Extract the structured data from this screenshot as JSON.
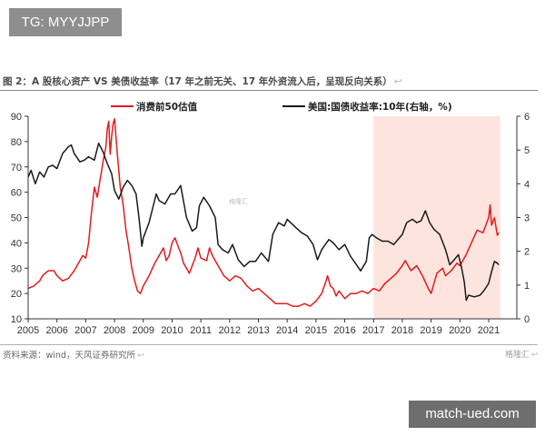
{
  "header": {
    "tag": "TG: MYYJJPP"
  },
  "figure": {
    "title": "图 2：A 股核心资产 VS 美债收益率（17 年之前无关、17 年外资流入后，呈现反向关系）",
    "return_mark": "↩",
    "source": "资料来源：wind，天风证券研究所",
    "logo_text": "格隆汇"
  },
  "footer": {
    "site": "match-ued.com"
  },
  "colors": {
    "pe": "#e41a1c",
    "yield": "#1a1a1a",
    "shade": "#fde4dd",
    "axis": "#333333"
  },
  "chart_data": {
    "type": "line",
    "x_ticks": [
      "2005",
      "2006",
      "2007",
      "2008",
      "2009",
      "2010",
      "2011",
      "2012",
      "2013",
      "2014",
      "2015",
      "2016",
      "2017",
      "2018",
      "2019",
      "2020",
      "2021"
    ],
    "y_left": {
      "min": 10,
      "max": 90,
      "ticks": [
        10,
        20,
        30,
        40,
        50,
        60,
        70,
        80,
        90
      ]
    },
    "y_right": {
      "min": 0,
      "max": 6,
      "ticks": [
        0,
        1,
        2,
        3,
        4,
        5,
        6
      ]
    },
    "shaded_range": [
      2017.0,
      2021.4
    ],
    "watermark": "格隆汇",
    "series": [
      {
        "name": "消费前50估值",
        "axis": "left",
        "color": "#e41a1c",
        "points": [
          [
            2005.0,
            22
          ],
          [
            2005.2,
            23
          ],
          [
            2005.4,
            25
          ],
          [
            2005.5,
            27
          ],
          [
            2005.7,
            29
          ],
          [
            2005.9,
            29
          ],
          [
            2006.0,
            27
          ],
          [
            2006.2,
            25
          ],
          [
            2006.4,
            26
          ],
          [
            2006.6,
            29
          ],
          [
            2006.8,
            33
          ],
          [
            2006.9,
            35
          ],
          [
            2007.0,
            34
          ],
          [
            2007.1,
            40
          ],
          [
            2007.2,
            52
          ],
          [
            2007.3,
            62
          ],
          [
            2007.4,
            58
          ],
          [
            2007.5,
            65
          ],
          [
            2007.6,
            72
          ],
          [
            2007.7,
            78
          ],
          [
            2007.75,
            85
          ],
          [
            2007.8,
            88
          ],
          [
            2007.85,
            75
          ],
          [
            2007.9,
            82
          ],
          [
            2007.95,
            87
          ],
          [
            2008.0,
            89
          ],
          [
            2008.1,
            75
          ],
          [
            2008.2,
            62
          ],
          [
            2008.3,
            55
          ],
          [
            2008.4,
            45
          ],
          [
            2008.5,
            38
          ],
          [
            2008.6,
            30
          ],
          [
            2008.7,
            25
          ],
          [
            2008.8,
            21
          ],
          [
            2008.9,
            20
          ],
          [
            2009.0,
            23
          ],
          [
            2009.2,
            27
          ],
          [
            2009.4,
            32
          ],
          [
            2009.6,
            36
          ],
          [
            2009.7,
            38
          ],
          [
            2009.8,
            33
          ],
          [
            2009.9,
            35
          ],
          [
            2010.0,
            40
          ],
          [
            2010.1,
            42
          ],
          [
            2010.3,
            36
          ],
          [
            2010.4,
            32
          ],
          [
            2010.6,
            28
          ],
          [
            2010.8,
            34
          ],
          [
            2010.9,
            38
          ],
          [
            2011.0,
            34
          ],
          [
            2011.2,
            33
          ],
          [
            2011.3,
            38
          ],
          [
            2011.4,
            35
          ],
          [
            2011.6,
            31
          ],
          [
            2011.8,
            27
          ],
          [
            2012.0,
            25
          ],
          [
            2012.2,
            27
          ],
          [
            2012.4,
            26
          ],
          [
            2012.6,
            23
          ],
          [
            2012.8,
            21
          ],
          [
            2013.0,
            22
          ],
          [
            2013.2,
            20
          ],
          [
            2013.4,
            18
          ],
          [
            2013.6,
            16
          ],
          [
            2013.8,
            16
          ],
          [
            2014.0,
            16
          ],
          [
            2014.2,
            15
          ],
          [
            2014.4,
            15
          ],
          [
            2014.6,
            16
          ],
          [
            2014.8,
            15
          ],
          [
            2015.0,
            17
          ],
          [
            2015.2,
            20
          ],
          [
            2015.35,
            25
          ],
          [
            2015.4,
            27
          ],
          [
            2015.5,
            23
          ],
          [
            2015.6,
            22
          ],
          [
            2015.7,
            19
          ],
          [
            2015.8,
            21
          ],
          [
            2016.0,
            18
          ],
          [
            2016.2,
            20
          ],
          [
            2016.4,
            20
          ],
          [
            2016.6,
            21
          ],
          [
            2016.8,
            20
          ],
          [
            2017.0,
            22
          ],
          [
            2017.2,
            21
          ],
          [
            2017.4,
            24
          ],
          [
            2017.6,
            26
          ],
          [
            2017.8,
            28
          ],
          [
            2018.0,
            31
          ],
          [
            2018.1,
            33
          ],
          [
            2018.3,
            29
          ],
          [
            2018.5,
            31
          ],
          [
            2018.7,
            27
          ],
          [
            2018.9,
            22
          ],
          [
            2019.0,
            20
          ],
          [
            2019.2,
            28
          ],
          [
            2019.4,
            30
          ],
          [
            2019.5,
            27
          ],
          [
            2019.7,
            29
          ],
          [
            2019.9,
            32
          ],
          [
            2020.0,
            31
          ],
          [
            2020.2,
            35
          ],
          [
            2020.4,
            40
          ],
          [
            2020.6,
            45
          ],
          [
            2020.8,
            44
          ],
          [
            2021.0,
            50
          ],
          [
            2021.05,
            55
          ],
          [
            2021.1,
            47
          ],
          [
            2021.2,
            50
          ],
          [
            2021.3,
            43
          ],
          [
            2021.35,
            44
          ]
        ]
      },
      {
        "name": "美国:国债收益率:10年(右轴，%)",
        "axis": "right",
        "color": "#1a1a1a",
        "points": [
          [
            2005.0,
            4.2
          ],
          [
            2005.1,
            4.4
          ],
          [
            2005.25,
            4.0
          ],
          [
            2005.4,
            4.35
          ],
          [
            2005.55,
            4.2
          ],
          [
            2005.7,
            4.5
          ],
          [
            2005.85,
            4.55
          ],
          [
            2006.0,
            4.45
          ],
          [
            2006.2,
            4.9
          ],
          [
            2006.4,
            5.1
          ],
          [
            2006.5,
            5.15
          ],
          [
            2006.6,
            4.9
          ],
          [
            2006.8,
            4.65
          ],
          [
            2006.95,
            4.7
          ],
          [
            2007.1,
            4.8
          ],
          [
            2007.3,
            4.7
          ],
          [
            2007.45,
            5.2
          ],
          [
            2007.6,
            4.95
          ],
          [
            2007.75,
            4.6
          ],
          [
            2007.9,
            4.3
          ],
          [
            2008.0,
            3.8
          ],
          [
            2008.15,
            3.55
          ],
          [
            2008.3,
            3.9
          ],
          [
            2008.45,
            4.1
          ],
          [
            2008.6,
            3.95
          ],
          [
            2008.75,
            3.7
          ],
          [
            2008.85,
            3.0
          ],
          [
            2008.95,
            2.15
          ],
          [
            2009.0,
            2.4
          ],
          [
            2009.2,
            2.85
          ],
          [
            2009.45,
            3.7
          ],
          [
            2009.55,
            3.5
          ],
          [
            2009.75,
            3.4
          ],
          [
            2009.95,
            3.7
          ],
          [
            2010.1,
            3.7
          ],
          [
            2010.3,
            3.95
          ],
          [
            2010.5,
            3.0
          ],
          [
            2010.7,
            2.6
          ],
          [
            2010.85,
            2.7
          ],
          [
            2010.95,
            3.35
          ],
          [
            2011.1,
            3.6
          ],
          [
            2011.3,
            3.35
          ],
          [
            2011.5,
            3.0
          ],
          [
            2011.6,
            2.2
          ],
          [
            2011.75,
            2.05
          ],
          [
            2011.95,
            1.95
          ],
          [
            2012.1,
            2.2
          ],
          [
            2012.3,
            1.75
          ],
          [
            2012.5,
            1.55
          ],
          [
            2012.7,
            1.7
          ],
          [
            2012.9,
            1.7
          ],
          [
            2013.1,
            1.95
          ],
          [
            2013.35,
            1.7
          ],
          [
            2013.5,
            2.5
          ],
          [
            2013.7,
            2.85
          ],
          [
            2013.9,
            2.75
          ],
          [
            2014.0,
            2.95
          ],
          [
            2014.3,
            2.7
          ],
          [
            2014.5,
            2.55
          ],
          [
            2014.7,
            2.45
          ],
          [
            2014.9,
            2.2
          ],
          [
            2015.05,
            1.75
          ],
          [
            2015.2,
            2.05
          ],
          [
            2015.45,
            2.35
          ],
          [
            2015.6,
            2.25
          ],
          [
            2015.8,
            2.05
          ],
          [
            2016.0,
            2.2
          ],
          [
            2016.2,
            1.85
          ],
          [
            2016.45,
            1.55
          ],
          [
            2016.55,
            1.42
          ],
          [
            2016.75,
            1.7
          ],
          [
            2016.85,
            2.4
          ],
          [
            2016.95,
            2.5
          ],
          [
            2017.1,
            2.4
          ],
          [
            2017.3,
            2.3
          ],
          [
            2017.5,
            2.3
          ],
          [
            2017.7,
            2.2
          ],
          [
            2017.9,
            2.4
          ],
          [
            2018.0,
            2.5
          ],
          [
            2018.15,
            2.85
          ],
          [
            2018.35,
            2.95
          ],
          [
            2018.5,
            2.85
          ],
          [
            2018.65,
            2.9
          ],
          [
            2018.8,
            3.2
          ],
          [
            2018.95,
            2.85
          ],
          [
            2019.1,
            2.65
          ],
          [
            2019.3,
            2.5
          ],
          [
            2019.5,
            2.05
          ],
          [
            2019.65,
            1.6
          ],
          [
            2019.8,
            1.75
          ],
          [
            2019.95,
            1.9
          ],
          [
            2020.05,
            1.55
          ],
          [
            2020.15,
            1.1
          ],
          [
            2020.22,
            0.55
          ],
          [
            2020.3,
            0.7
          ],
          [
            2020.5,
            0.65
          ],
          [
            2020.7,
            0.7
          ],
          [
            2020.85,
            0.85
          ],
          [
            2021.0,
            1.05
          ],
          [
            2021.1,
            1.4
          ],
          [
            2021.2,
            1.7
          ],
          [
            2021.3,
            1.65
          ],
          [
            2021.35,
            1.6
          ]
        ]
      }
    ]
  }
}
